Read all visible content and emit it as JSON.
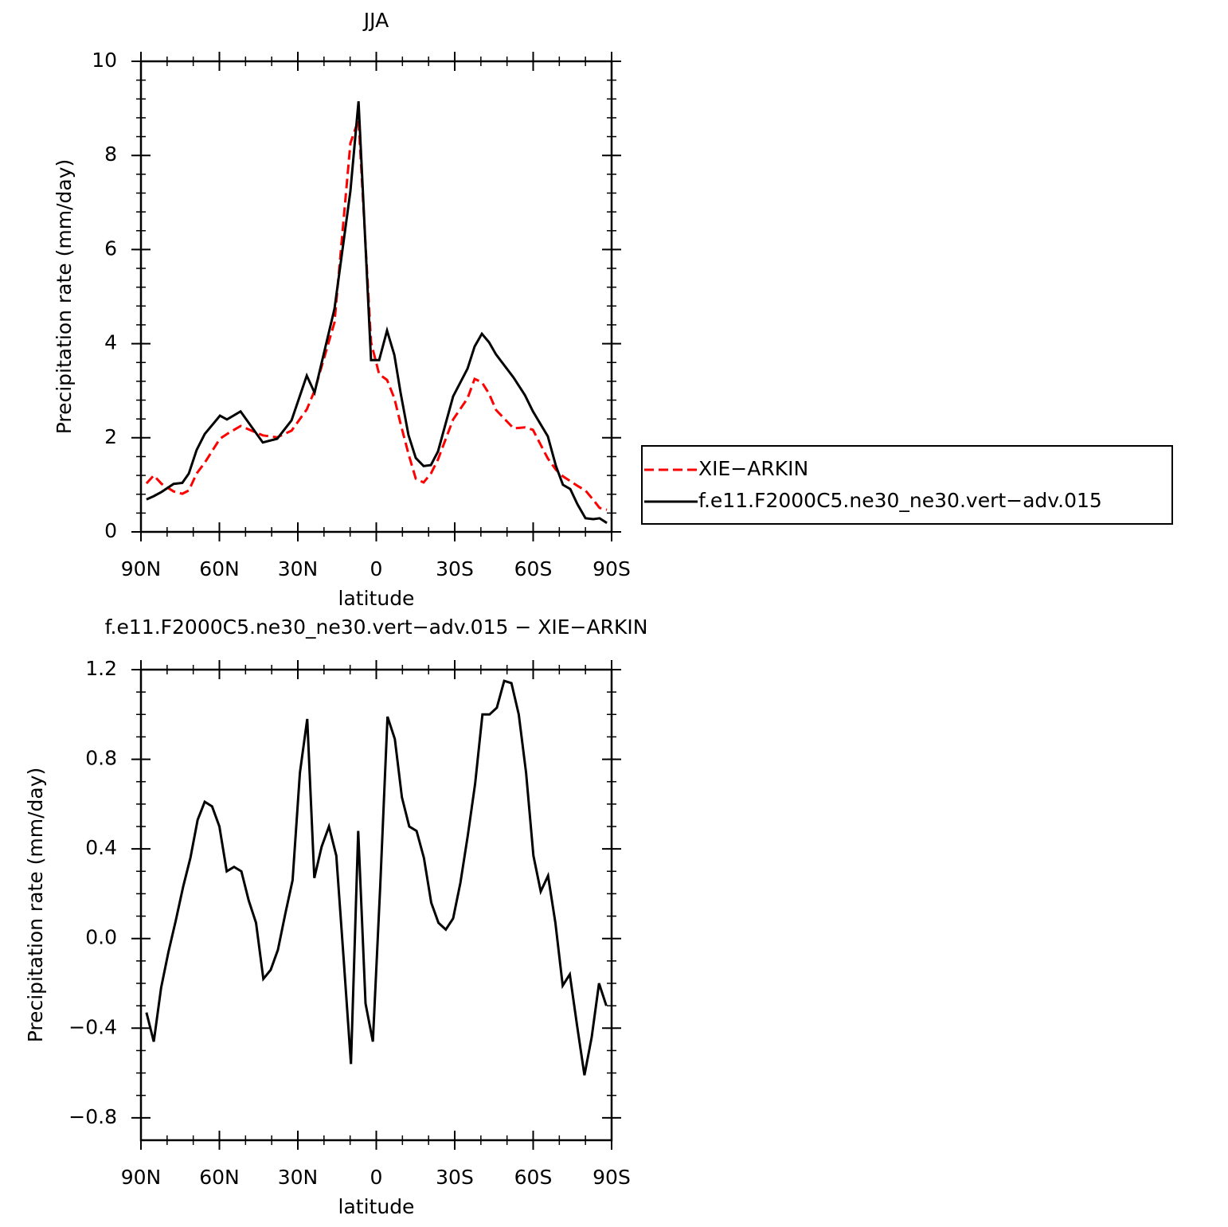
{
  "chart_data": [
    {
      "type": "line",
      "title": "JJA",
      "x_label": "latitude",
      "y_label": "Precipitation rate (mm/day)",
      "x": [
        87.9,
        85.1,
        82.1,
        77.5,
        74.2,
        71.7,
        68.7,
        65.6,
        59.8,
        57.1,
        51.9,
        43.4,
        37.9,
        32.4,
        26.6,
        23.6,
        16.0,
        9.9,
        6.8,
        2.0,
        -1.1,
        -4.1,
        -6.9,
        -9.3,
        -12.3,
        -15.1,
        -18.1,
        -20.9,
        -23.6,
        -29.4,
        -34.9,
        -37.6,
        -40.4,
        -43.1,
        -45.8,
        -52.5,
        -56.8,
        -59.9,
        -65.6,
        -68.7,
        -71.4,
        -74.2,
        -76.9,
        -80.0,
        -83.0,
        -85.4,
        -88.2
      ],
      "series": [
        {
          "name": "XIE−ARKIN",
          "color": "#ff0000",
          "dashed": true,
          "values": [
            1.03,
            1.2,
            1.02,
            0.86,
            0.81,
            0.88,
            1.24,
            1.47,
            1.98,
            2.08,
            2.25,
            2.05,
            2.01,
            2.15,
            2.6,
            3.0,
            4.45,
            8.26,
            8.76,
            4.03,
            3.35,
            3.23,
            2.84,
            2.3,
            1.66,
            1.13,
            1.05,
            1.24,
            1.54,
            2.39,
            2.84,
            3.25,
            3.18,
            2.94,
            2.59,
            2.2,
            2.22,
            2.17,
            1.56,
            1.32,
            1.18,
            1.08,
            0.98,
            0.88,
            0.68,
            0.51,
            0.47
          ]
        },
        {
          "name": "f.e11.F2000C5.ne30_ne30.vert−adv.015",
          "color": "#000000",
          "dashed": false,
          "values": [
            0.69,
            0.76,
            0.85,
            1.02,
            1.04,
            1.24,
            1.74,
            2.08,
            2.47,
            2.39,
            2.56,
            1.9,
            1.98,
            2.37,
            3.32,
            2.96,
            4.74,
            7.24,
            9.15,
            3.65,
            3.65,
            4.28,
            3.76,
            2.96,
            2.06,
            1.57,
            1.4,
            1.42,
            1.71,
            2.88,
            3.47,
            3.94,
            4.21,
            4.03,
            3.77,
            3.28,
            2.91,
            2.56,
            2.03,
            1.4,
            1.0,
            0.91,
            0.59,
            0.29,
            0.27,
            0.29,
            0.19
          ]
        }
      ],
      "xlim": [
        90,
        -90
      ],
      "xticks": [
        {
          "value": 90,
          "label": "90N"
        },
        {
          "value": 60,
          "label": "60N"
        },
        {
          "value": 30,
          "label": "30N"
        },
        0,
        {
          "value": -30,
          "label": "30S"
        },
        {
          "value": -60,
          "label": "60S"
        },
        {
          "value": -90,
          "label": "90S"
        }
      ],
      "ylim": [
        0,
        10
      ],
      "yticks": [
        0,
        2,
        4,
        6,
        8,
        10
      ],
      "legend": "right"
    },
    {
      "type": "line",
      "title": "f.e11.F2000C5.ne30_ne30.vert−adv.015 − XIE−ARKIN",
      "x_label": "latitude",
      "y_label": "Precipitation rate (mm/day)",
      "x": [
        87.9,
        85.1,
        82.3,
        79.5,
        76.7,
        73.9,
        71.1,
        68.3,
        65.6,
        62.8,
        60.0,
        57.2,
        54.4,
        51.6,
        48.8,
        46.0,
        43.2,
        40.4,
        37.6,
        34.8,
        32.0,
        29.2,
        26.4,
        23.7,
        20.9,
        18.1,
        15.3,
        12.5,
        9.7,
        6.9,
        4.1,
        1.3,
        -1.5,
        -4.3,
        -7.1,
        -9.8,
        -12.6,
        -15.4,
        -18.2,
        -21.0,
        -23.8,
        -26.6,
        -29.4,
        -32.2,
        -35.0,
        -37.8,
        -40.6,
        -43.3,
        -46.1,
        -48.9,
        -51.7,
        -54.5,
        -57.3,
        -60.1,
        -62.9,
        -65.7,
        -68.5,
        -71.3,
        -74.0,
        -76.8,
        -79.6,
        -82.4,
        -85.2,
        -88.0
      ],
      "series": [
        {
          "color": "#000000",
          "dashed": false,
          "values": [
            -0.33,
            -0.46,
            -0.22,
            -0.06,
            0.08,
            0.23,
            0.36,
            0.53,
            0.61,
            0.59,
            0.5,
            0.3,
            0.32,
            0.3,
            0.17,
            0.07,
            -0.18,
            -0.14,
            -0.05,
            0.11,
            0.26,
            0.74,
            0.98,
            0.27,
            0.41,
            0.5,
            0.37,
            -0.09,
            -0.56,
            0.48,
            -0.29,
            -0.46,
            0.23,
            0.99,
            0.89,
            0.63,
            0.5,
            0.48,
            0.36,
            0.16,
            0.07,
            0.04,
            0.09,
            0.25,
            0.46,
            0.69,
            1.0,
            1.0,
            1.03,
            1.15,
            1.14,
            1.0,
            0.74,
            0.37,
            0.21,
            0.28,
            0.07,
            -0.21,
            -0.16,
            -0.39,
            -0.61,
            -0.44,
            -0.2,
            -0.3
          ]
        }
      ],
      "xlim": [
        90,
        -90
      ],
      "xticks": [
        {
          "value": 90,
          "label": "90N"
        },
        {
          "value": 60,
          "label": "60N"
        },
        {
          "value": 30,
          "label": "30N"
        },
        0,
        {
          "value": -30,
          "label": "30S"
        },
        {
          "value": -60,
          "label": "60S"
        },
        {
          "value": -90,
          "label": "90S"
        }
      ],
      "ylim": [
        -0.9,
        1.2
      ],
      "yticks": [
        {
          "value": -0.8,
          "label": "−0.8"
        },
        {
          "value": -0.4,
          "label": "−0.4"
        },
        {
          "value": 0,
          "label": "0.0"
        },
        {
          "value": 0.4,
          "label": "0.4"
        },
        {
          "value": 0.8,
          "label": "0.8"
        },
        {
          "value": 1.2,
          "label": "1.2"
        }
      ]
    }
  ]
}
